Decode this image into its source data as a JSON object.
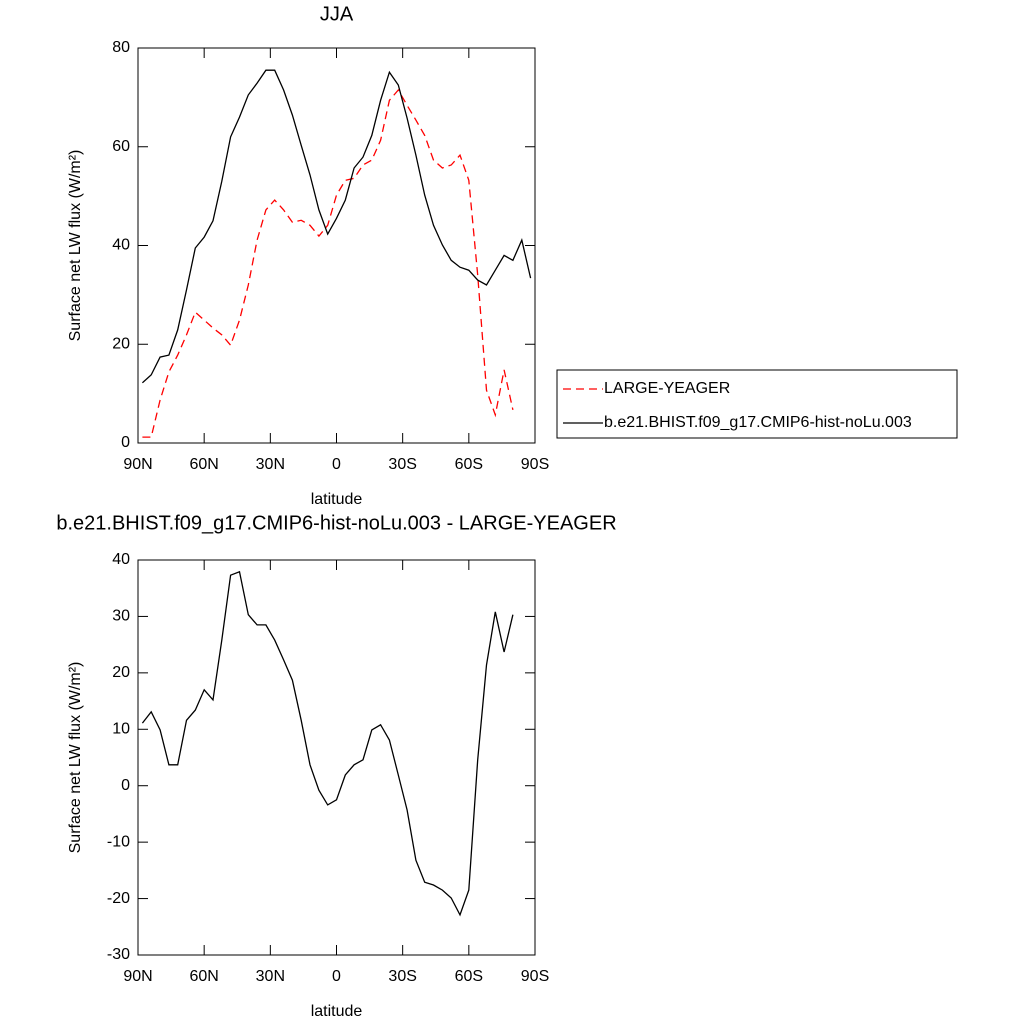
{
  "chart_data": [
    {
      "type": "line",
      "title": "JJA",
      "xlabel": "latitude",
      "ylabel": "Surface net LW flux (W/m²)",
      "x": [
        88,
        84,
        80,
        76,
        72,
        68,
        64,
        60,
        56,
        52,
        48,
        44,
        40,
        36,
        32,
        28,
        24,
        20,
        16,
        12,
        8,
        4,
        0,
        -4,
        -8,
        -12,
        -16,
        -20,
        -24,
        -28,
        -32,
        -36,
        -40,
        -44,
        -48,
        -52,
        -56,
        -60,
        -64,
        -68,
        -72,
        -76,
        -80,
        -84,
        -88
      ],
      "xlim": [
        90,
        -90
      ],
      "xticks": [
        {
          "value": 90,
          "label": "90N"
        },
        {
          "value": 60,
          "label": "60N"
        },
        {
          "value": 30,
          "label": "30N"
        },
        0,
        {
          "value": -30,
          "label": "30S"
        },
        {
          "value": -60,
          "label": "60S"
        },
        {
          "value": -90,
          "label": "90S"
        }
      ],
      "ylim": [
        0,
        80
      ],
      "yticks": [
        0,
        20,
        40,
        60,
        80
      ],
      "legend": "right",
      "series": [
        {
          "name": "LARGE-YEAGER",
          "color": "#ff0000",
          "dashed": true,
          "values": [
            1.2,
            1.2,
            8.7,
            14.4,
            17.8,
            21.9,
            26.5,
            24.9,
            23.3,
            21.9,
            19.8,
            24.9,
            32,
            41.1,
            47.2,
            49.2,
            47.2,
            44.7,
            45.1,
            44.1,
            41.9,
            44.1,
            50.2,
            53.2,
            53.6,
            56.3,
            57.3,
            61.3,
            69.4,
            71.5,
            68.4,
            65.4,
            62.3,
            57.3,
            55.7,
            56.3,
            58.3,
            53.2,
            34,
            10.7,
            5.7,
            14.8,
            6.7,
            null,
            null
          ]
        },
        {
          "name": "b.e21.BHIST.f09_g17.CMIP6-hist-noLu.003",
          "color": "#000000",
          "dashed": false,
          "values": [
            12.2,
            13.8,
            17.4,
            17.8,
            22.9,
            31,
            39.5,
            41.7,
            45,
            53,
            62,
            66,
            70.5,
            72.9,
            75.5,
            75.5,
            71.5,
            66.4,
            60.3,
            54.3,
            47.2,
            42.3,
            45.5,
            49.2,
            55.7,
            57.9,
            62.3,
            69.4,
            75.1,
            72.5,
            65.8,
            58.3,
            50.2,
            44.1,
            40.1,
            37,
            35.6,
            35,
            33,
            32,
            35,
            38,
            37,
            41.1,
            33.4
          ]
        }
      ]
    },
    {
      "type": "line",
      "title": "b.e21.BHIST.f09_g17.CMIP6-hist-noLu.003 - LARGE-YEAGER",
      "xlabel": "latitude",
      "ylabel": "Surface net LW flux (W/m²)",
      "x": [
        88,
        84,
        80,
        76,
        72,
        68,
        64,
        60,
        56,
        52,
        48,
        44,
        40,
        36,
        32,
        28,
        24,
        20,
        16,
        12,
        8,
        4,
        0,
        -4,
        -8,
        -12,
        -16,
        -20,
        -24,
        -28,
        -32,
        -36,
        -40,
        -44,
        -48,
        -52,
        -56,
        -60,
        -64,
        -68,
        -72,
        -76,
        -80
      ],
      "xlim": [
        90,
        -90
      ],
      "xticks": [
        {
          "value": 90,
          "label": "90N"
        },
        {
          "value": 60,
          "label": "60N"
        },
        {
          "value": 30,
          "label": "30N"
        },
        0,
        {
          "value": -30,
          "label": "30S"
        },
        {
          "value": -60,
          "label": "60S"
        },
        {
          "value": -90,
          "label": "90S"
        }
      ],
      "ylim": [
        -30,
        40
      ],
      "yticks": [
        -30,
        -20,
        -10,
        0,
        10,
        20,
        30,
        40
      ],
      "series": [
        {
          "color": "#000000",
          "dashed": false,
          "values": [
            11.1,
            13.1,
            9.9,
            3.7,
            3.7,
            11.6,
            13.4,
            17,
            15.2,
            25.8,
            37.3,
            37.9,
            30.3,
            28.5,
            28.5,
            25.8,
            22.3,
            18.7,
            11.6,
            3.7,
            -0.8,
            -3.4,
            -2.5,
            1.9,
            3.7,
            4.6,
            9.9,
            10.8,
            8.1,
            1.9,
            -4.3,
            -13.2,
            -17.1,
            -17.6,
            -18.5,
            -19.9,
            -22.9,
            -18.5,
            4.6,
            21.4,
            30.8,
            23.7,
            30.3
          ]
        }
      ]
    }
  ]
}
